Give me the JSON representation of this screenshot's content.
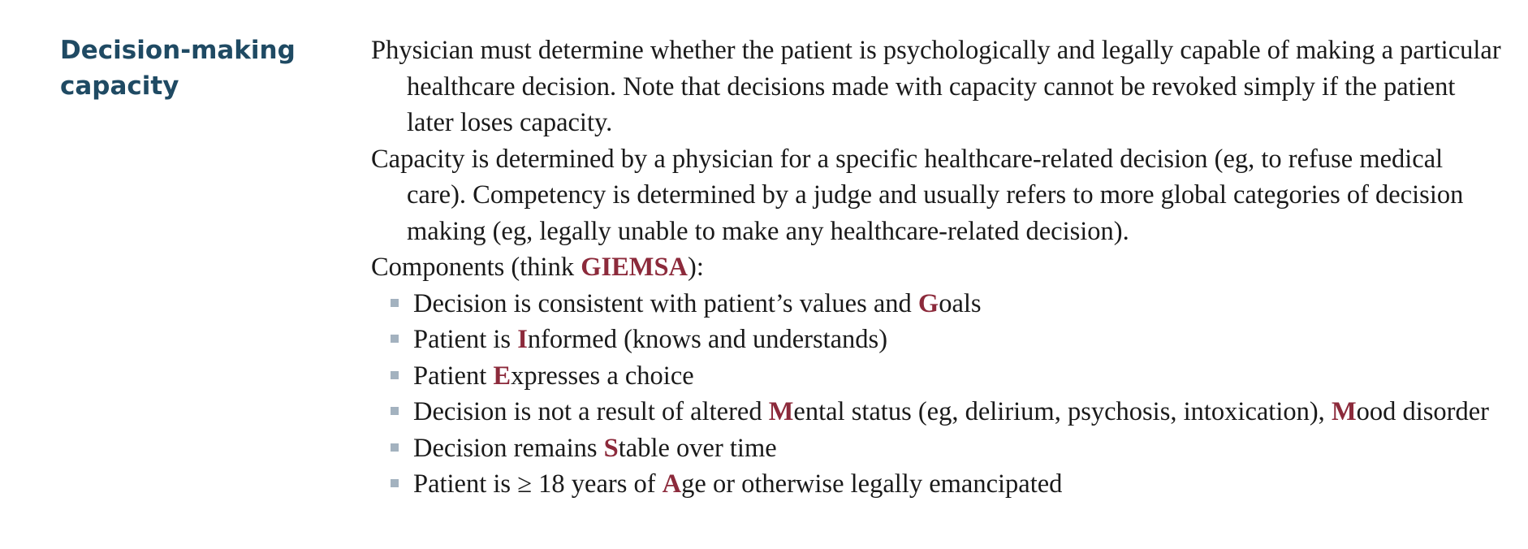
{
  "term": "Decision-making capacity",
  "paragraphs": [
    "Physician must determine whether the patient is psychologically and legally capable of making a particular healthcare decision. Note that decisions made with capacity cannot be revoked simply if the patient later loses capacity.",
    "Capacity is determined by a physician for a specific healthcare-related decision (eg, to refuse medical care). Competency is determined by a judge and usually refers to more global categories of decision making (eg, legally unable to make any healthcare-related decision)."
  ],
  "components": {
    "prefix": "Components (think ",
    "mnemonic": "GIEMSA",
    "suffix": "):"
  },
  "bullets": [
    {
      "before": "Decision is consistent with patient’s values and ",
      "letter": "G",
      "after": "oals"
    },
    {
      "before": "Patient is ",
      "letter": "I",
      "after": "nformed (knows and understands)"
    },
    {
      "before": "Patient ",
      "letter": "E",
      "after": "xpresses a choice"
    },
    {
      "before": "Decision is not a result of altered ",
      "letter": "M",
      "after": "ental status (eg, delirium, psychosis, intoxication), ",
      "letter2": "M",
      "after2": "ood disorder"
    },
    {
      "before": "Decision remains ",
      "letter": "S",
      "after": "table over time"
    },
    {
      "before": "Patient is ≥ 18 years of ",
      "letter": "A",
      "after": "ge or otherwise legally emancipated"
    }
  ],
  "colors": {
    "term": "#1f4a63",
    "mnemonic": "#8c2a3b",
    "bullet": "#a3b2bf"
  }
}
